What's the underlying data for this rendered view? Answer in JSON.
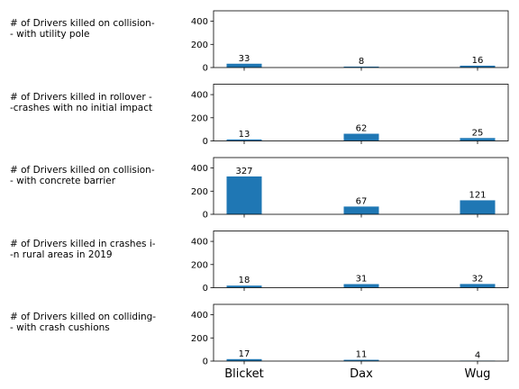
{
  "chart_data": {
    "type": "bar",
    "categories": [
      "Blicket",
      "Dax",
      "Wug"
    ],
    "ylim": [
      0,
      490
    ],
    "yticks": [
      0,
      200,
      400
    ],
    "bar_color": "#1f77b4",
    "panels": [
      {
        "label": "# of Drivers killed on collision-\n- with utility pole",
        "values": [
          33,
          8,
          16
        ]
      },
      {
        "label": "# of Drivers killed in rollover -\n-crashes with no initial impact",
        "values": [
          13,
          62,
          25
        ]
      },
      {
        "label": "# of Drivers killed on collision-\n- with concrete barrier",
        "values": [
          327,
          67,
          121
        ]
      },
      {
        "label": "# of Drivers killed in crashes i-\n-n rural areas in 2019",
        "values": [
          18,
          31,
          32
        ]
      },
      {
        "label": "# of Drivers killed on colliding-\n- with crash cushions",
        "values": [
          17,
          11,
          4
        ]
      }
    ]
  }
}
